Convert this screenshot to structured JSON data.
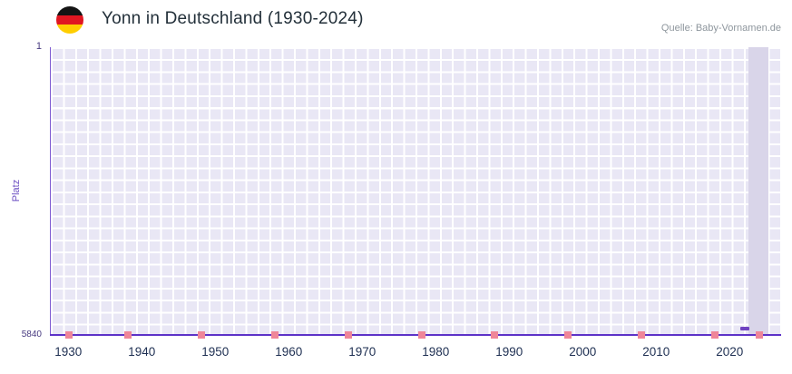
{
  "header": {
    "title": "Yonn in Deutschland (1930-2024)",
    "source": "Quelle: Baby-Vornamen.de",
    "flag_icon": "germany-flag-icon"
  },
  "chart_data": {
    "type": "line",
    "title": "Yonn in Deutschland (1930-2024)",
    "xlabel": "",
    "ylabel": "Platz",
    "grid": true,
    "legend": "none",
    "y_axis": {
      "top_label": "1",
      "bottom_label": "5840",
      "min": 1,
      "max": 5840,
      "inverted": true
    },
    "x_axis": {
      "min": 1927.5,
      "max": 2027,
      "tick_years": [
        1930,
        1940,
        1950,
        1960,
        1970,
        1980,
        1990,
        2000,
        2010,
        2020
      ]
    },
    "series": [
      {
        "name": "Yonn",
        "color": "#6f42c1",
        "points": [
          {
            "year": 2022,
            "rank": 5700
          }
        ]
      }
    ],
    "unranked_marker_years": [
      1930,
      1938,
      1948,
      1958,
      1968,
      1978,
      1988,
      1998,
      2008,
      2018,
      2024
    ],
    "highlight_band": {
      "start_year": 2022.5,
      "end_year": 2025.3
    },
    "colors": {
      "plot_bg": "#e9e7f5",
      "grid_line": "#ffffff",
      "axis_line": "#5d33c8",
      "unranked_marker": "#ef8699",
      "data_point": "#6f42c1",
      "highlight_band": "#d9d5e9",
      "x_tick_text": "#1f3053",
      "y_tick_text": "#473a80",
      "ylabel_text": "#6b4ec2",
      "title_text": "#23303a",
      "source_text": "#8e969d"
    }
  }
}
